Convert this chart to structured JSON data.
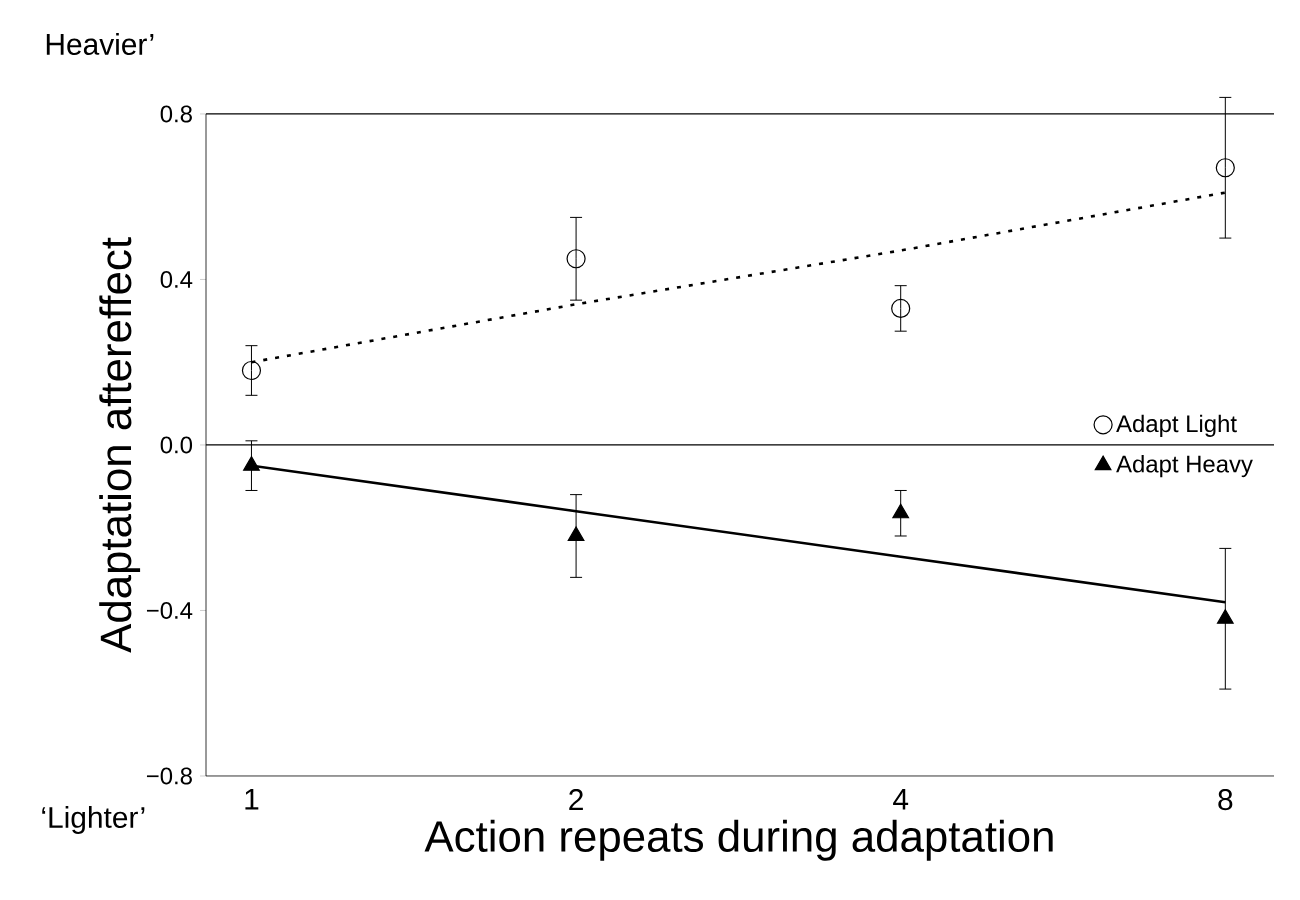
{
  "chart_data": {
    "type": "scatter",
    "xlabel": "Action repeats during adaptation",
    "ylabel": "Adaptation aftereffect",
    "categories": [
      "1",
      "2",
      "4",
      "8"
    ],
    "ylim": [
      -0.8,
      0.8
    ],
    "yticks": [
      {
        "value": -0.8,
        "label": "−0.8"
      },
      {
        "value": -0.4,
        "label": "−0.4"
      },
      {
        "value": 0,
        "label": "0.0"
      },
      0.4,
      0.8
    ],
    "series": [
      {
        "name": "Adapt Light",
        "type": "scatter",
        "color": "#000000",
        "marker": "circle",
        "values": [
          0.18,
          0.45,
          0.33,
          0.67
        ],
        "errors": [
          0.06,
          0.1,
          0.055,
          0.17
        ]
      },
      {
        "name": "Adapt Heavy",
        "type": "scatter",
        "color": "#000000",
        "marker": "triangle",
        "values": [
          -0.05,
          -0.22,
          -0.165,
          -0.42
        ],
        "errors": [
          0.06,
          0.1,
          0.055,
          0.17
        ]
      },
      {
        "type": "line",
        "color": "#000000",
        "line_style": "dotted",
        "values": [
          0.2,
          0.34,
          0.47,
          0.61
        ]
      },
      {
        "type": "line",
        "color": "#000000",
        "line_style": "solid",
        "values": [
          -0.05,
          -0.16,
          -0.27,
          -0.38
        ]
      }
    ],
    "ref_lines": [
      {
        "axis": "y",
        "value": 0
      }
    ],
    "legend": "right",
    "annotations": [
      "Heavier’",
      "‘Lighter’"
    ]
  }
}
